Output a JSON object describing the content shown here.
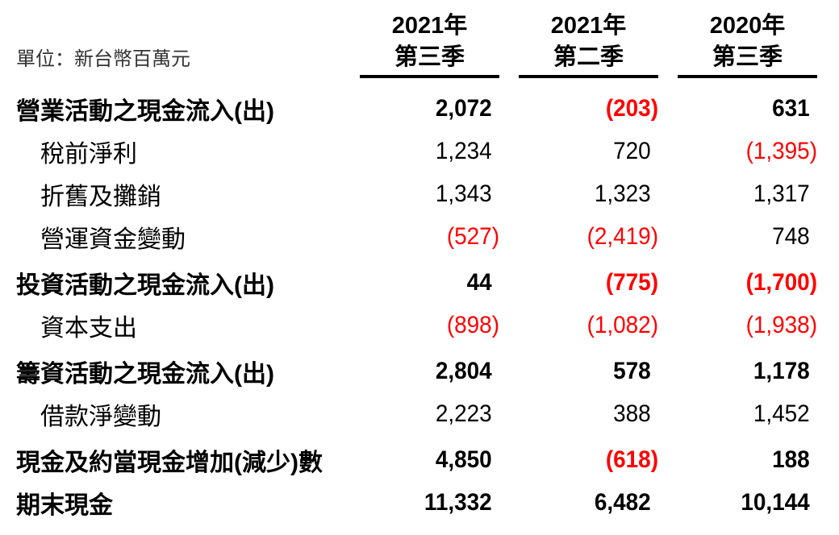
{
  "unit_label": "單位：新台幣百萬元",
  "columns": [
    {
      "year": "2021年",
      "quarter": "第三季"
    },
    {
      "year": "2021年",
      "quarter": "第二季"
    },
    {
      "year": "2020年",
      "quarter": "第三季"
    }
  ],
  "rows": [
    {
      "label": "營業活動之現金流入(出)",
      "style": "section",
      "values": [
        "2,072",
        "(203)",
        "631"
      ]
    },
    {
      "label": "稅前淨利",
      "style": "sub",
      "values": [
        "1,234",
        "720",
        "(1,395)"
      ]
    },
    {
      "label": "折舊及攤銷",
      "style": "sub",
      "values": [
        "1,343",
        "1,323",
        "1,317"
      ]
    },
    {
      "label": "營運資金變動",
      "style": "sub",
      "values": [
        "(527)",
        "(2,419)",
        "748"
      ]
    },
    {
      "label": "投資活動之現金流入(出)",
      "style": "section",
      "values": [
        "44",
        "(775)",
        "(1,700)"
      ]
    },
    {
      "label": "資本支出",
      "style": "sub",
      "values": [
        "(898)",
        "(1,082)",
        "(1,938)"
      ]
    },
    {
      "label": "籌資活動之現金流入(出)",
      "style": "section",
      "values": [
        "2,804",
        "578",
        "1,178"
      ]
    },
    {
      "label": "借款淨變動",
      "style": "sub",
      "values": [
        "2,223",
        "388",
        "1,452"
      ]
    },
    {
      "label": "現金及約當現金增加(減少)數",
      "style": "section",
      "values": [
        "4,850",
        "(618)",
        "188"
      ]
    },
    {
      "label": "期末現金",
      "style": "section",
      "values": [
        "11,332",
        "6,482",
        "10,144"
      ]
    }
  ],
  "colors": {
    "negative": "#ff0000",
    "text": "#000000",
    "rule": "#000000"
  }
}
